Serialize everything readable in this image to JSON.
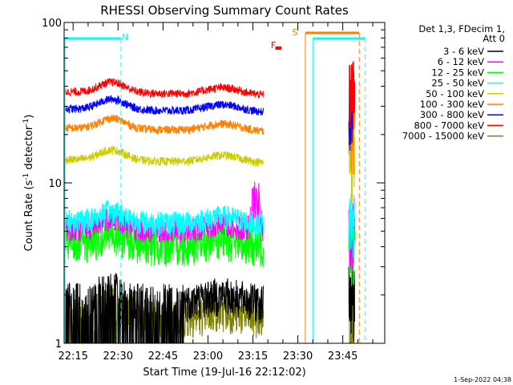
{
  "chart_data": {
    "type": "line",
    "title": "RHESSI Observing Summary Count Rates",
    "xlabel": "Start Time (19-Jul-16 22:12:02)",
    "ylabel_main": "Count Rate (s",
    "ylabel_sup1": "-1",
    "ylabel_mid": " detector",
    "ylabel_sup2": "-1",
    "ylabel_end": ")",
    "yscale": "log",
    "ylim": [
      1,
      100
    ],
    "xlim_minutes": [
      0,
      107
    ],
    "x_ticks": [
      {
        "label": "22:15",
        "minute": 3
      },
      {
        "label": "22:30",
        "minute": 18
      },
      {
        "label": "22:45",
        "minute": 33
      },
      {
        "label": "23:00",
        "minute": 48
      },
      {
        "label": "23:15",
        "minute": 63
      },
      {
        "label": "23:30",
        "minute": 78
      },
      {
        "label": "23:45",
        "minute": 93
      }
    ],
    "y_ticks": [
      {
        "label": "1",
        "value": 1
      },
      {
        "label": "10",
        "value": 10
      },
      {
        "label": "100",
        "value": 100
      }
    ],
    "legend_header": [
      "Det 1,3, FDecim 1,",
      "Att 0"
    ],
    "series": [
      {
        "name": "3 - 6 keV",
        "color": "#000000",
        "level": 1.9
      },
      {
        "name": "6 - 12 keV",
        "color": "#ff00ff",
        "level": 5.2
      },
      {
        "name": "12 - 25 keV",
        "color": "#00ff00",
        "level": 4.2
      },
      {
        "name": "25 - 50 keV",
        "color": "#00ffff",
        "level": 5.8
      },
      {
        "name": "50 - 100 keV",
        "color": "#cccc00",
        "level": 14
      },
      {
        "name": "100 - 300 keV",
        "color": "#ff8000",
        "level": 22
      },
      {
        "name": "300 - 800 keV",
        "color": "#0000ff",
        "level": 29
      },
      {
        "name": "800 - 7000 keV",
        "color": "#ff0000",
        "level": 37
      },
      {
        "name": "7000 - 15000 keV",
        "color": "#808000",
        "level": 1.5
      }
    ],
    "annotations": [
      {
        "text": "N",
        "color": "#00ffff",
        "minute": 19
      },
      {
        "text": "F",
        "color": "#ff0000",
        "minute": 70
      },
      {
        "text": "S",
        "color": "#ff8000",
        "minute": 76
      }
    ],
    "footer_date": "1-Sep-2022 04:38"
  }
}
